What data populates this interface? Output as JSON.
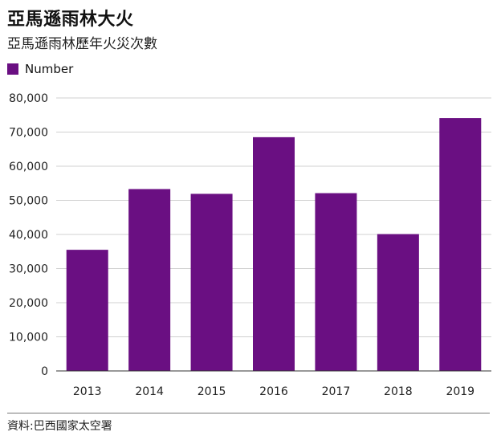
{
  "header": {
    "title": "亞馬遜雨林大火",
    "subtitle": "亞馬遜雨林歷年火災次數"
  },
  "legend": {
    "label": "Number"
  },
  "footer": {
    "source": "資料:巴西國家太空署"
  },
  "colors": {
    "bar": "#6a0f82",
    "grid": "#d0d0d0",
    "axis": "#333333"
  },
  "chart_data": {
    "type": "bar",
    "title": "亞馬遜雨林大火",
    "subtitle": "亞馬遜雨林歷年火災次數",
    "categories": [
      "2013",
      "2014",
      "2015",
      "2016",
      "2017",
      "2018",
      "2019"
    ],
    "series": [
      {
        "name": "Number",
        "values": [
          35500,
          53300,
          51900,
          68500,
          52100,
          40100,
          74100
        ]
      }
    ],
    "ylim": [
      0,
      80000
    ],
    "yticks": [
      0,
      10000,
      20000,
      30000,
      40000,
      50000,
      60000,
      70000,
      80000
    ],
    "ytick_labels": [
      "0",
      "10,000",
      "20,000",
      "30,000",
      "40,000",
      "50,000",
      "60,000",
      "70,000",
      "80,000"
    ],
    "grid": true,
    "legend_position": "top-left"
  }
}
